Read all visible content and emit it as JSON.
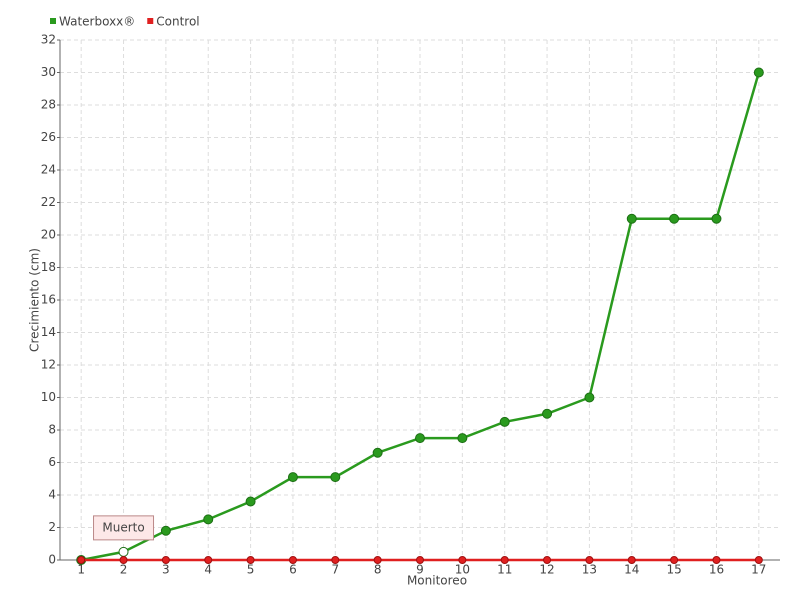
{
  "chart_data": {
    "type": "line",
    "categories": [
      1,
      2,
      3,
      4,
      5,
      6,
      7,
      8,
      9,
      10,
      11,
      12,
      13,
      14,
      15,
      16,
      17
    ],
    "series": [
      {
        "name": "Waterboxx®",
        "color": "#2a9a1e",
        "values": [
          0,
          0.5,
          1.8,
          2.5,
          3.6,
          5.1,
          5.1,
          6.6,
          7.5,
          7.5,
          8.5,
          9,
          10,
          21,
          21,
          21,
          30
        ]
      },
      {
        "name": "Control",
        "color": "#e02020",
        "values": [
          0,
          0,
          0,
          0,
          0,
          0,
          0,
          0,
          0,
          0,
          0,
          0,
          0,
          0,
          0,
          0,
          0
        ]
      }
    ],
    "x_label": "Monitoreo",
    "y_label": "Crecimiento (cm)",
    "ylim": [
      0,
      32
    ],
    "yticks": [
      0,
      2,
      4,
      6,
      8,
      10,
      12,
      14,
      16,
      18,
      20,
      22,
      24,
      26,
      28,
      30,
      32
    ],
    "grid": true,
    "legend": "top-left",
    "annotations": [
      {
        "x": 2,
        "text": "Muerto"
      }
    ]
  }
}
